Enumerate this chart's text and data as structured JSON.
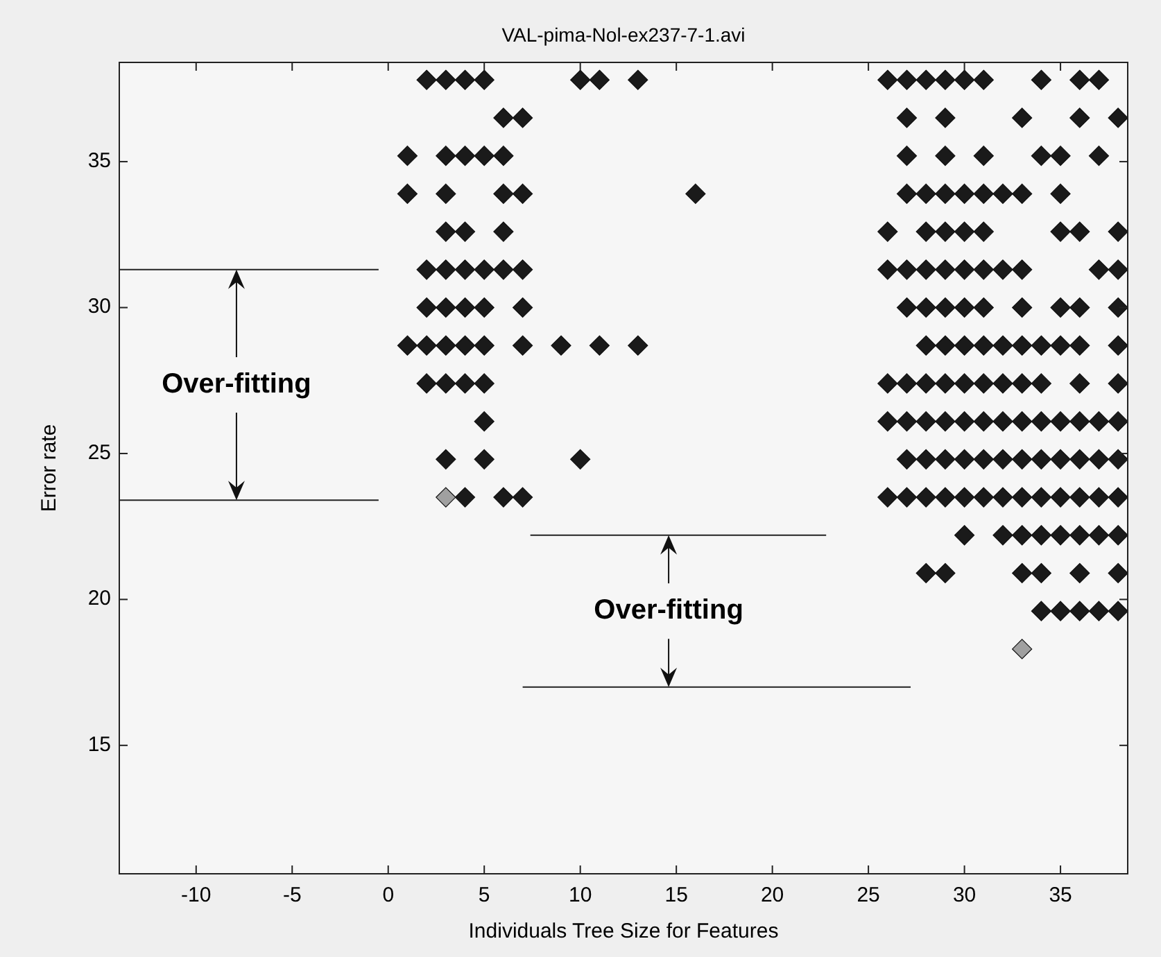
{
  "chart_data": {
    "type": "scatter",
    "title": "VAL-pima-Nol-ex237-7-1.avi",
    "xlabel": "Individuals Tree Size for Features",
    "ylabel": "Error rate",
    "xlim": [
      -14,
      38.5
    ],
    "ylim": [
      10.6,
      38.4
    ],
    "xticks": [
      -10,
      -5,
      0,
      5,
      10,
      15,
      20,
      25,
      30,
      35
    ],
    "yticks": [
      15,
      20,
      25,
      30,
      35
    ],
    "marker": "diamond",
    "grid": false,
    "series": [
      {
        "color": "#1a1a1a",
        "x": [
          2,
          3,
          4,
          5,
          10,
          11,
          13,
          26,
          27,
          28,
          29,
          30,
          31,
          34,
          36,
          37
        ],
        "values": [
          37.8,
          37.8,
          37.8,
          37.8,
          37.8,
          37.8,
          37.8,
          37.8,
          37.8,
          37.8,
          37.8,
          37.8,
          37.8,
          37.8,
          37.8,
          37.8
        ]
      },
      {
        "color": "#1a1a1a",
        "x": [
          6,
          7,
          27,
          29,
          33,
          36,
          38
        ],
        "values": [
          36.5,
          36.5,
          36.5,
          36.5,
          36.5,
          36.5,
          36.5
        ]
      },
      {
        "color": "#1a1a1a",
        "x": [
          1,
          3,
          4,
          5,
          6,
          27,
          29,
          31,
          34,
          35,
          37
        ],
        "values": [
          35.2,
          35.2,
          35.2,
          35.2,
          35.2,
          35.2,
          35.2,
          35.2,
          35.2,
          35.2,
          35.2
        ]
      },
      {
        "color": "#1a1a1a",
        "x": [
          1,
          3,
          6,
          7,
          16,
          27,
          28,
          29,
          30,
          31,
          32,
          33,
          35
        ],
        "values": [
          33.9,
          33.9,
          33.9,
          33.9,
          33.9,
          33.9,
          33.9,
          33.9,
          33.9,
          33.9,
          33.9,
          33.9,
          33.9
        ]
      },
      {
        "color": "#1a1a1a",
        "x": [
          3,
          4,
          6,
          26,
          28,
          29,
          30,
          31,
          35,
          36,
          38
        ],
        "values": [
          32.6,
          32.6,
          32.6,
          32.6,
          32.6,
          32.6,
          32.6,
          32.6,
          32.6,
          32.6,
          32.6
        ]
      },
      {
        "color": "#1a1a1a",
        "x": [
          2,
          3,
          4,
          5,
          6,
          7,
          26,
          27,
          28,
          29,
          30,
          31,
          32,
          33,
          37,
          38
        ],
        "values": [
          31.3,
          31.3,
          31.3,
          31.3,
          31.3,
          31.3,
          31.3,
          31.3,
          31.3,
          31.3,
          31.3,
          31.3,
          31.3,
          31.3,
          31.3,
          31.3
        ]
      },
      {
        "color": "#1a1a1a",
        "x": [
          2,
          3,
          4,
          5,
          7,
          27,
          28,
          29,
          30,
          31,
          33,
          35,
          36,
          38
        ],
        "values": [
          30,
          30,
          30,
          30,
          30,
          30,
          30,
          30,
          30,
          30,
          30,
          30,
          30,
          30
        ]
      },
      {
        "color": "#1a1a1a",
        "x": [
          1,
          2,
          3,
          4,
          5,
          7,
          9,
          11,
          13,
          28,
          29,
          30,
          31,
          32,
          33,
          34,
          35,
          36,
          38
        ],
        "values": [
          28.7,
          28.7,
          28.7,
          28.7,
          28.7,
          28.7,
          28.7,
          28.7,
          28.7,
          28.7,
          28.7,
          28.7,
          28.7,
          28.7,
          28.7,
          28.7,
          28.7,
          28.7,
          28.7
        ]
      },
      {
        "color": "#1a1a1a",
        "x": [
          2,
          3,
          4,
          5,
          26,
          27,
          28,
          29,
          30,
          31,
          32,
          33,
          34,
          36,
          38
        ],
        "values": [
          27.4,
          27.4,
          27.4,
          27.4,
          27.4,
          27.4,
          27.4,
          27.4,
          27.4,
          27.4,
          27.4,
          27.4,
          27.4,
          27.4,
          27.4
        ]
      },
      {
        "color": "#1a1a1a",
        "x": [
          5,
          26,
          27,
          28,
          29,
          30,
          31,
          32,
          33,
          34,
          35,
          36,
          37,
          38
        ],
        "values": [
          26.1,
          26.1,
          26.1,
          26.1,
          26.1,
          26.1,
          26.1,
          26.1,
          26.1,
          26.1,
          26.1,
          26.1,
          26.1,
          26.1
        ]
      },
      {
        "color": "#1a1a1a",
        "x": [
          3,
          5,
          10,
          27,
          28,
          29,
          30,
          31,
          32,
          33,
          34,
          35,
          36,
          37,
          38
        ],
        "values": [
          24.8,
          24.8,
          24.8,
          24.8,
          24.8,
          24.8,
          24.8,
          24.8,
          24.8,
          24.8,
          24.8,
          24.8,
          24.8,
          24.8,
          24.8
        ]
      },
      {
        "color": "#1a1a1a",
        "x": [
          4,
          6,
          7,
          26,
          27,
          28,
          29,
          30,
          31,
          32,
          33,
          34,
          35,
          36,
          37,
          38
        ],
        "values": [
          23.5,
          23.5,
          23.5,
          23.5,
          23.5,
          23.5,
          23.5,
          23.5,
          23.5,
          23.5,
          23.5,
          23.5,
          23.5,
          23.5,
          23.5,
          23.5
        ]
      },
      {
        "color": "#1a1a1a",
        "x": [
          30,
          32,
          33,
          34,
          35,
          36,
          37,
          38
        ],
        "values": [
          22.2,
          22.2,
          22.2,
          22.2,
          22.2,
          22.2,
          22.2,
          22.2
        ]
      },
      {
        "color": "#1a1a1a",
        "x": [
          28,
          29,
          33,
          34,
          36,
          38
        ],
        "values": [
          20.9,
          20.9,
          20.9,
          20.9,
          20.9,
          20.9
        ]
      },
      {
        "color": "#1a1a1a",
        "x": [
          34,
          35,
          36,
          37,
          38
        ],
        "values": [
          19.6,
          19.6,
          19.6,
          19.6,
          19.6
        ]
      },
      {
        "color": "#a0a0a0",
        "x": [
          3,
          33
        ],
        "values": [
          23.5,
          18.3
        ]
      },
      {
        "type": "line",
        "marker": "none",
        "color": "#222222",
        "x": [
          -14,
          -0.5
        ],
        "values": [
          31.3,
          31.3
        ]
      },
      {
        "type": "line",
        "marker": "none",
        "color": "#222222",
        "x": [
          -14,
          -0.5
        ],
        "values": [
          23.4,
          23.4
        ]
      },
      {
        "type": "line",
        "marker": "none",
        "color": "#222222",
        "x": [
          7.4,
          22.8
        ],
        "values": [
          22.2,
          22.2
        ]
      },
      {
        "type": "line",
        "marker": "none",
        "color": "#222222",
        "x": [
          7,
          27.2
        ],
        "values": [
          17,
          17
        ]
      }
    ],
    "annotations": [
      {
        "text": "Over-fitting",
        "x": -7.9,
        "y": 31.3
      },
      {
        "text": "Over-fitting",
        "x": 14.6,
        "y": 22.2
      }
    ]
  }
}
